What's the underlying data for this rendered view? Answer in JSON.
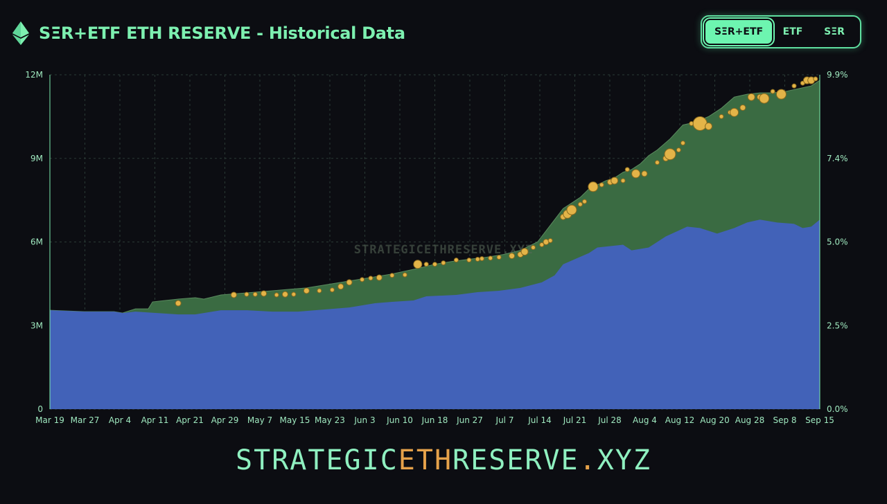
{
  "header": {
    "title": "SΞR+ETF ETH RESERVE - Historical Data"
  },
  "toggle": {
    "options": [
      "SΞR+ETF",
      "ETF",
      "SΞR"
    ],
    "selected": "SΞR+ETF"
  },
  "footer": {
    "part1": "STRATEGIC",
    "part2": "ETH",
    "part3": "RESERVE",
    "part4": ".",
    "part5": "XYZ"
  },
  "colors": {
    "etf": "#4262b8",
    "ser": "#3a6b42",
    "bubble": "#e3b448",
    "accent": "#7df0b0"
  },
  "chart_data": {
    "type": "area",
    "title": "SΞR+ETF ETH RESERVE - Historical Data",
    "watermark": "STRATEGICETHRESERVE.XYZ",
    "x_tick_labels": [
      "Mar 19",
      "Mar 27",
      "Apr 4",
      "Apr 11",
      "Apr 21",
      "Apr 29",
      "May 7",
      "May 15",
      "May 23",
      "Jun 3",
      "Jun 10",
      "Jun 18",
      "Jun 27",
      "Jul 7",
      "Jul 14",
      "Jul 21",
      "Jul 28",
      "Aug 4",
      "Aug 12",
      "Aug 20",
      "Aug 28",
      "Sep 8",
      "Sep 15"
    ],
    "y_left": {
      "ticks": [
        0,
        3000000,
        6000000,
        9000000,
        12000000
      ],
      "labels": [
        "0",
        "3M",
        "6M",
        "9M",
        "12M"
      ],
      "range": [
        0,
        12000000
      ]
    },
    "y_right": {
      "labels": [
        "0.0%",
        "2.5%",
        "5.0%",
        "7.4%",
        "9.9%"
      ],
      "range": [
        0,
        9.9
      ]
    },
    "x_range_days": [
      0,
      180
    ],
    "series": [
      {
        "name": "ETF",
        "points": [
          [
            0,
            3.55
          ],
          [
            8,
            3.5
          ],
          [
            15,
            3.5
          ],
          [
            17,
            3.45
          ],
          [
            20,
            3.5
          ],
          [
            25,
            3.45
          ],
          [
            30,
            3.4
          ],
          [
            34,
            3.4
          ],
          [
            36,
            3.45
          ],
          [
            40,
            3.55
          ],
          [
            46,
            3.55
          ],
          [
            52,
            3.5
          ],
          [
            58,
            3.5
          ],
          [
            62,
            3.55
          ],
          [
            66,
            3.6
          ],
          [
            70,
            3.65
          ],
          [
            76,
            3.8
          ],
          [
            80,
            3.85
          ],
          [
            85,
            3.9
          ],
          [
            88,
            4.05
          ],
          [
            95,
            4.1
          ],
          [
            100,
            4.2
          ],
          [
            105,
            4.25
          ],
          [
            110,
            4.35
          ],
          [
            115,
            4.55
          ],
          [
            118,
            4.8
          ],
          [
            120,
            5.2
          ],
          [
            123,
            5.4
          ],
          [
            126,
            5.6
          ],
          [
            128,
            5.8
          ],
          [
            131,
            5.85
          ],
          [
            134,
            5.9
          ],
          [
            136,
            5.7
          ],
          [
            140,
            5.8
          ],
          [
            144,
            6.2
          ],
          [
            149,
            6.55
          ],
          [
            152,
            6.5
          ],
          [
            156,
            6.3
          ],
          [
            160,
            6.5
          ],
          [
            163,
            6.7
          ],
          [
            166,
            6.8
          ],
          [
            170,
            6.7
          ],
          [
            174,
            6.65
          ],
          [
            176,
            6.5
          ],
          [
            178,
            6.55
          ],
          [
            180,
            6.8
          ]
        ]
      },
      {
        "name": "SΞR",
        "points": [
          [
            0,
            3.55
          ],
          [
            8,
            3.5
          ],
          [
            15,
            3.5
          ],
          [
            17,
            3.45
          ],
          [
            20,
            3.6
          ],
          [
            23,
            3.6
          ],
          [
            24,
            3.85
          ],
          [
            27,
            3.9
          ],
          [
            30,
            3.95
          ],
          [
            34,
            4.0
          ],
          [
            36,
            3.95
          ],
          [
            40,
            4.1
          ],
          [
            44,
            4.15
          ],
          [
            48,
            4.2
          ],
          [
            52,
            4.25
          ],
          [
            56,
            4.3
          ],
          [
            60,
            4.35
          ],
          [
            64,
            4.45
          ],
          [
            68,
            4.55
          ],
          [
            72,
            4.65
          ],
          [
            76,
            4.75
          ],
          [
            80,
            4.85
          ],
          [
            83,
            4.95
          ],
          [
            86,
            5.05
          ],
          [
            90,
            5.2
          ],
          [
            94,
            5.3
          ],
          [
            98,
            5.38
          ],
          [
            102,
            5.45
          ],
          [
            106,
            5.55
          ],
          [
            110,
            5.7
          ],
          [
            114,
            6.0
          ],
          [
            116,
            6.4
          ],
          [
            118,
            6.8
          ],
          [
            120,
            7.2
          ],
          [
            122,
            7.4
          ],
          [
            124,
            7.6
          ],
          [
            126,
            7.9
          ],
          [
            128,
            8.05
          ],
          [
            130,
            8.2
          ],
          [
            132,
            8.3
          ],
          [
            134,
            8.5
          ],
          [
            136,
            8.6
          ],
          [
            138,
            8.8
          ],
          [
            140,
            9.1
          ],
          [
            142,
            9.3
          ],
          [
            145,
            9.7
          ],
          [
            148,
            10.2
          ],
          [
            151,
            10.3
          ],
          [
            154,
            10.5
          ],
          [
            157,
            10.8
          ],
          [
            160,
            11.2
          ],
          [
            163,
            11.3
          ],
          [
            166,
            11.35
          ],
          [
            169,
            11.35
          ],
          [
            172,
            11.4
          ],
          [
            175,
            11.5
          ],
          [
            178,
            11.6
          ],
          [
            180,
            11.8
          ]
        ]
      }
    ],
    "purchases": [
      {
        "d": 30,
        "v": 3.8,
        "s": 4
      },
      {
        "d": 43,
        "v": 4.1,
        "s": 4
      },
      {
        "d": 46,
        "v": 4.12,
        "s": 3
      },
      {
        "d": 48,
        "v": 4.12,
        "s": 3
      },
      {
        "d": 50,
        "v": 4.15,
        "s": 4
      },
      {
        "d": 53,
        "v": 4.1,
        "s": 3
      },
      {
        "d": 55,
        "v": 4.12,
        "s": 4
      },
      {
        "d": 57,
        "v": 4.12,
        "s": 3
      },
      {
        "d": 60,
        "v": 4.25,
        "s": 4
      },
      {
        "d": 63,
        "v": 4.25,
        "s": 3
      },
      {
        "d": 66,
        "v": 4.28,
        "s": 3
      },
      {
        "d": 68,
        "v": 4.4,
        "s": 4
      },
      {
        "d": 70,
        "v": 4.55,
        "s": 4
      },
      {
        "d": 73,
        "v": 4.65,
        "s": 3
      },
      {
        "d": 75,
        "v": 4.7,
        "s": 3
      },
      {
        "d": 77,
        "v": 4.72,
        "s": 4
      },
      {
        "d": 80,
        "v": 4.8,
        "s": 3
      },
      {
        "d": 83,
        "v": 4.82,
        "s": 3
      },
      {
        "d": 86,
        "v": 5.2,
        "s": 6
      },
      {
        "d": 88,
        "v": 5.2,
        "s": 3
      },
      {
        "d": 90,
        "v": 5.2,
        "s": 3
      },
      {
        "d": 92,
        "v": 5.25,
        "s": 3
      },
      {
        "d": 95,
        "v": 5.35,
        "s": 3
      },
      {
        "d": 98,
        "v": 5.35,
        "s": 3
      },
      {
        "d": 100,
        "v": 5.38,
        "s": 3
      },
      {
        "d": 101,
        "v": 5.4,
        "s": 3
      },
      {
        "d": 103,
        "v": 5.42,
        "s": 3
      },
      {
        "d": 105,
        "v": 5.45,
        "s": 3
      },
      {
        "d": 108,
        "v": 5.5,
        "s": 4
      },
      {
        "d": 110,
        "v": 5.55,
        "s": 4
      },
      {
        "d": 111,
        "v": 5.65,
        "s": 5
      },
      {
        "d": 113,
        "v": 5.8,
        "s": 3
      },
      {
        "d": 115,
        "v": 5.9,
        "s": 3
      },
      {
        "d": 116,
        "v": 6.0,
        "s": 4
      },
      {
        "d": 117,
        "v": 6.05,
        "s": 3
      },
      {
        "d": 120,
        "v": 6.9,
        "s": 4
      },
      {
        "d": 121,
        "v": 7.0,
        "s": 6
      },
      {
        "d": 122,
        "v": 7.15,
        "s": 7
      },
      {
        "d": 124,
        "v": 7.35,
        "s": 3
      },
      {
        "d": 125,
        "v": 7.45,
        "s": 3
      },
      {
        "d": 127,
        "v": 7.98,
        "s": 7
      },
      {
        "d": 129,
        "v": 8.05,
        "s": 3
      },
      {
        "d": 131,
        "v": 8.15,
        "s": 4
      },
      {
        "d": 132,
        "v": 8.2,
        "s": 5
      },
      {
        "d": 134,
        "v": 8.2,
        "s": 3
      },
      {
        "d": 135,
        "v": 8.6,
        "s": 3
      },
      {
        "d": 137,
        "v": 8.45,
        "s": 6
      },
      {
        "d": 139,
        "v": 8.45,
        "s": 4
      },
      {
        "d": 142,
        "v": 8.85,
        "s": 3
      },
      {
        "d": 144,
        "v": 9.0,
        "s": 4
      },
      {
        "d": 145,
        "v": 9.15,
        "s": 8
      },
      {
        "d": 147,
        "v": 9.3,
        "s": 3
      },
      {
        "d": 148,
        "v": 9.55,
        "s": 3
      },
      {
        "d": 150,
        "v": 10.25,
        "s": 3
      },
      {
        "d": 152,
        "v": 10.25,
        "s": 10
      },
      {
        "d": 154,
        "v": 10.15,
        "s": 5
      },
      {
        "d": 157,
        "v": 10.5,
        "s": 3
      },
      {
        "d": 159,
        "v": 10.65,
        "s": 3
      },
      {
        "d": 160,
        "v": 10.65,
        "s": 6
      },
      {
        "d": 162,
        "v": 10.82,
        "s": 4
      },
      {
        "d": 164,
        "v": 11.2,
        "s": 5
      },
      {
        "d": 166,
        "v": 11.2,
        "s": 4
      },
      {
        "d": 167,
        "v": 11.15,
        "s": 7
      },
      {
        "d": 169,
        "v": 11.4,
        "s": 3
      },
      {
        "d": 171,
        "v": 11.3,
        "s": 7
      },
      {
        "d": 174,
        "v": 11.6,
        "s": 3
      },
      {
        "d": 176,
        "v": 11.7,
        "s": 3
      },
      {
        "d": 177,
        "v": 11.8,
        "s": 5
      },
      {
        "d": 178,
        "v": 11.8,
        "s": 5
      },
      {
        "d": 179,
        "v": 11.85,
        "s": 3
      }
    ]
  }
}
